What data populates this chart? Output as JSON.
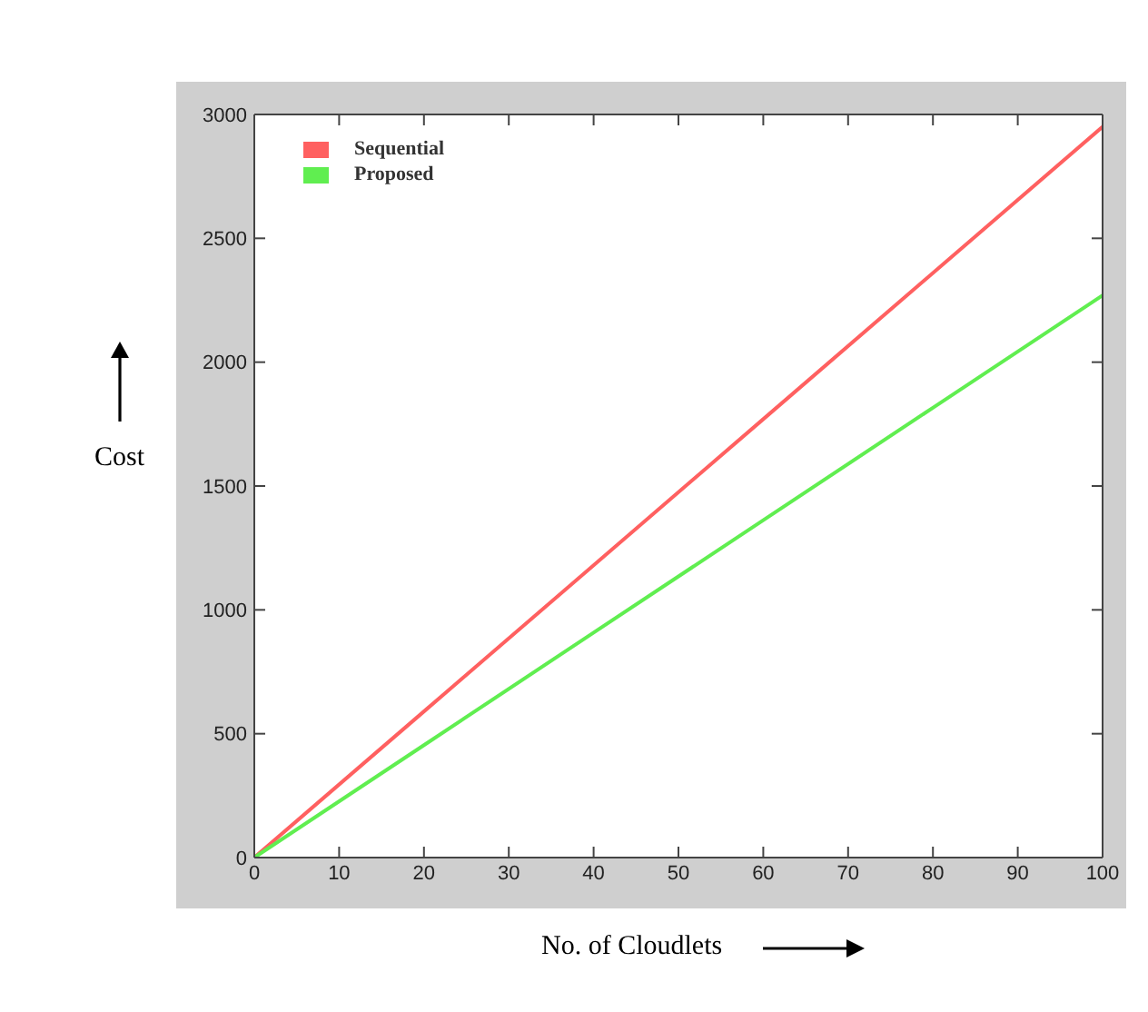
{
  "chart_data": {
    "type": "line",
    "xlabel": "No. of Cloudlets",
    "ylabel": "Cost",
    "x": [
      0,
      20,
      40,
      60,
      80,
      100
    ],
    "series": [
      {
        "name": "Sequential",
        "color": "#ff6060",
        "values": [
          0,
          590,
          1180,
          1770,
          2360,
          2950
        ]
      },
      {
        "name": "Proposed",
        "color": "#60ee50",
        "values": [
          0,
          454,
          908,
          1362,
          1816,
          2270
        ]
      }
    ],
    "xlim": [
      0,
      100
    ],
    "xticks": [
      0,
      10,
      20,
      30,
      40,
      50,
      60,
      70,
      80,
      90,
      100
    ],
    "ylim": [
      0,
      3000
    ],
    "yticks": [
      0,
      500,
      1000,
      1500,
      2000,
      2500,
      3000
    ],
    "legend": "top left",
    "marker": "none",
    "line_style": "solid"
  }
}
